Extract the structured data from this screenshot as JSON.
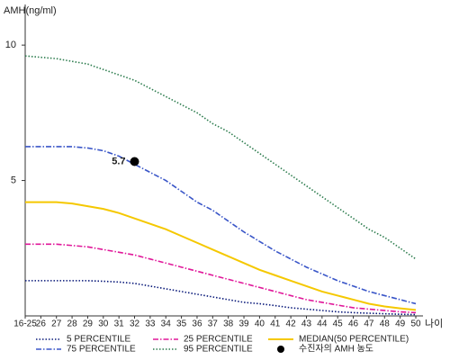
{
  "chart_data": {
    "type": "line",
    "y_label": "AMH(ng/ml)",
    "x_label": "나이",
    "categories": [
      "16-25",
      "26",
      "27",
      "28",
      "29",
      "30",
      "31",
      "32",
      "33",
      "34",
      "35",
      "36",
      "37",
      "38",
      "39",
      "40",
      "41",
      "42",
      "43",
      "44",
      "45",
      "46",
      "47",
      "48",
      "49",
      "50"
    ],
    "ylim": [
      0,
      11.5
    ],
    "yticks": [
      5,
      10
    ],
    "series": [
      {
        "name": "5 PERCENTILE",
        "color": "#0a1a7a",
        "style": "dotted",
        "values": [
          1.3,
          1.3,
          1.3,
          1.3,
          1.3,
          1.28,
          1.25,
          1.2,
          1.1,
          1.0,
          0.9,
          0.8,
          0.7,
          0.6,
          0.5,
          0.45,
          0.38,
          0.3,
          0.25,
          0.2,
          0.15,
          0.12,
          0.1,
          0.08,
          0.06,
          0.05
        ]
      },
      {
        "name": "25 PERCENTILE",
        "color": "#e0189a",
        "style": "dashdot",
        "values": [
          2.65,
          2.65,
          2.65,
          2.6,
          2.55,
          2.45,
          2.35,
          2.25,
          2.1,
          1.95,
          1.8,
          1.65,
          1.5,
          1.35,
          1.2,
          1.05,
          0.9,
          0.75,
          0.6,
          0.5,
          0.4,
          0.3,
          0.25,
          0.2,
          0.15,
          0.12
        ]
      },
      {
        "name": "MEDIAN(50 PERCENTILE)",
        "color": "#f5c800",
        "style": "solid",
        "values": [
          4.2,
          4.2,
          4.2,
          4.15,
          4.05,
          3.95,
          3.8,
          3.6,
          3.4,
          3.2,
          2.95,
          2.7,
          2.45,
          2.2,
          1.95,
          1.7,
          1.5,
          1.3,
          1.1,
          0.9,
          0.75,
          0.6,
          0.45,
          0.35,
          0.28,
          0.22
        ]
      },
      {
        "name": "75 PERCENTILE",
        "color": "#3a56c8",
        "style": "dashdot",
        "values": [
          6.25,
          6.25,
          6.25,
          6.25,
          6.2,
          6.1,
          5.9,
          5.6,
          5.3,
          5.0,
          4.6,
          4.2,
          3.9,
          3.5,
          3.1,
          2.75,
          2.4,
          2.1,
          1.8,
          1.55,
          1.3,
          1.1,
          0.9,
          0.75,
          0.6,
          0.45
        ]
      },
      {
        "name": "95 PERCENTILE",
        "color": "#2e7d4f",
        "style": "dotted",
        "values": [
          9.6,
          9.55,
          9.5,
          9.4,
          9.3,
          9.1,
          8.9,
          8.7,
          8.4,
          8.1,
          7.8,
          7.5,
          7.1,
          6.8,
          6.4,
          6.0,
          5.6,
          5.2,
          4.8,
          4.4,
          4.0,
          3.6,
          3.2,
          2.9,
          2.5,
          2.1
        ]
      }
    ],
    "marker": {
      "name": "수진자의 AMH 농도",
      "x": "32",
      "value": 5.7,
      "color": "#000000"
    }
  }
}
